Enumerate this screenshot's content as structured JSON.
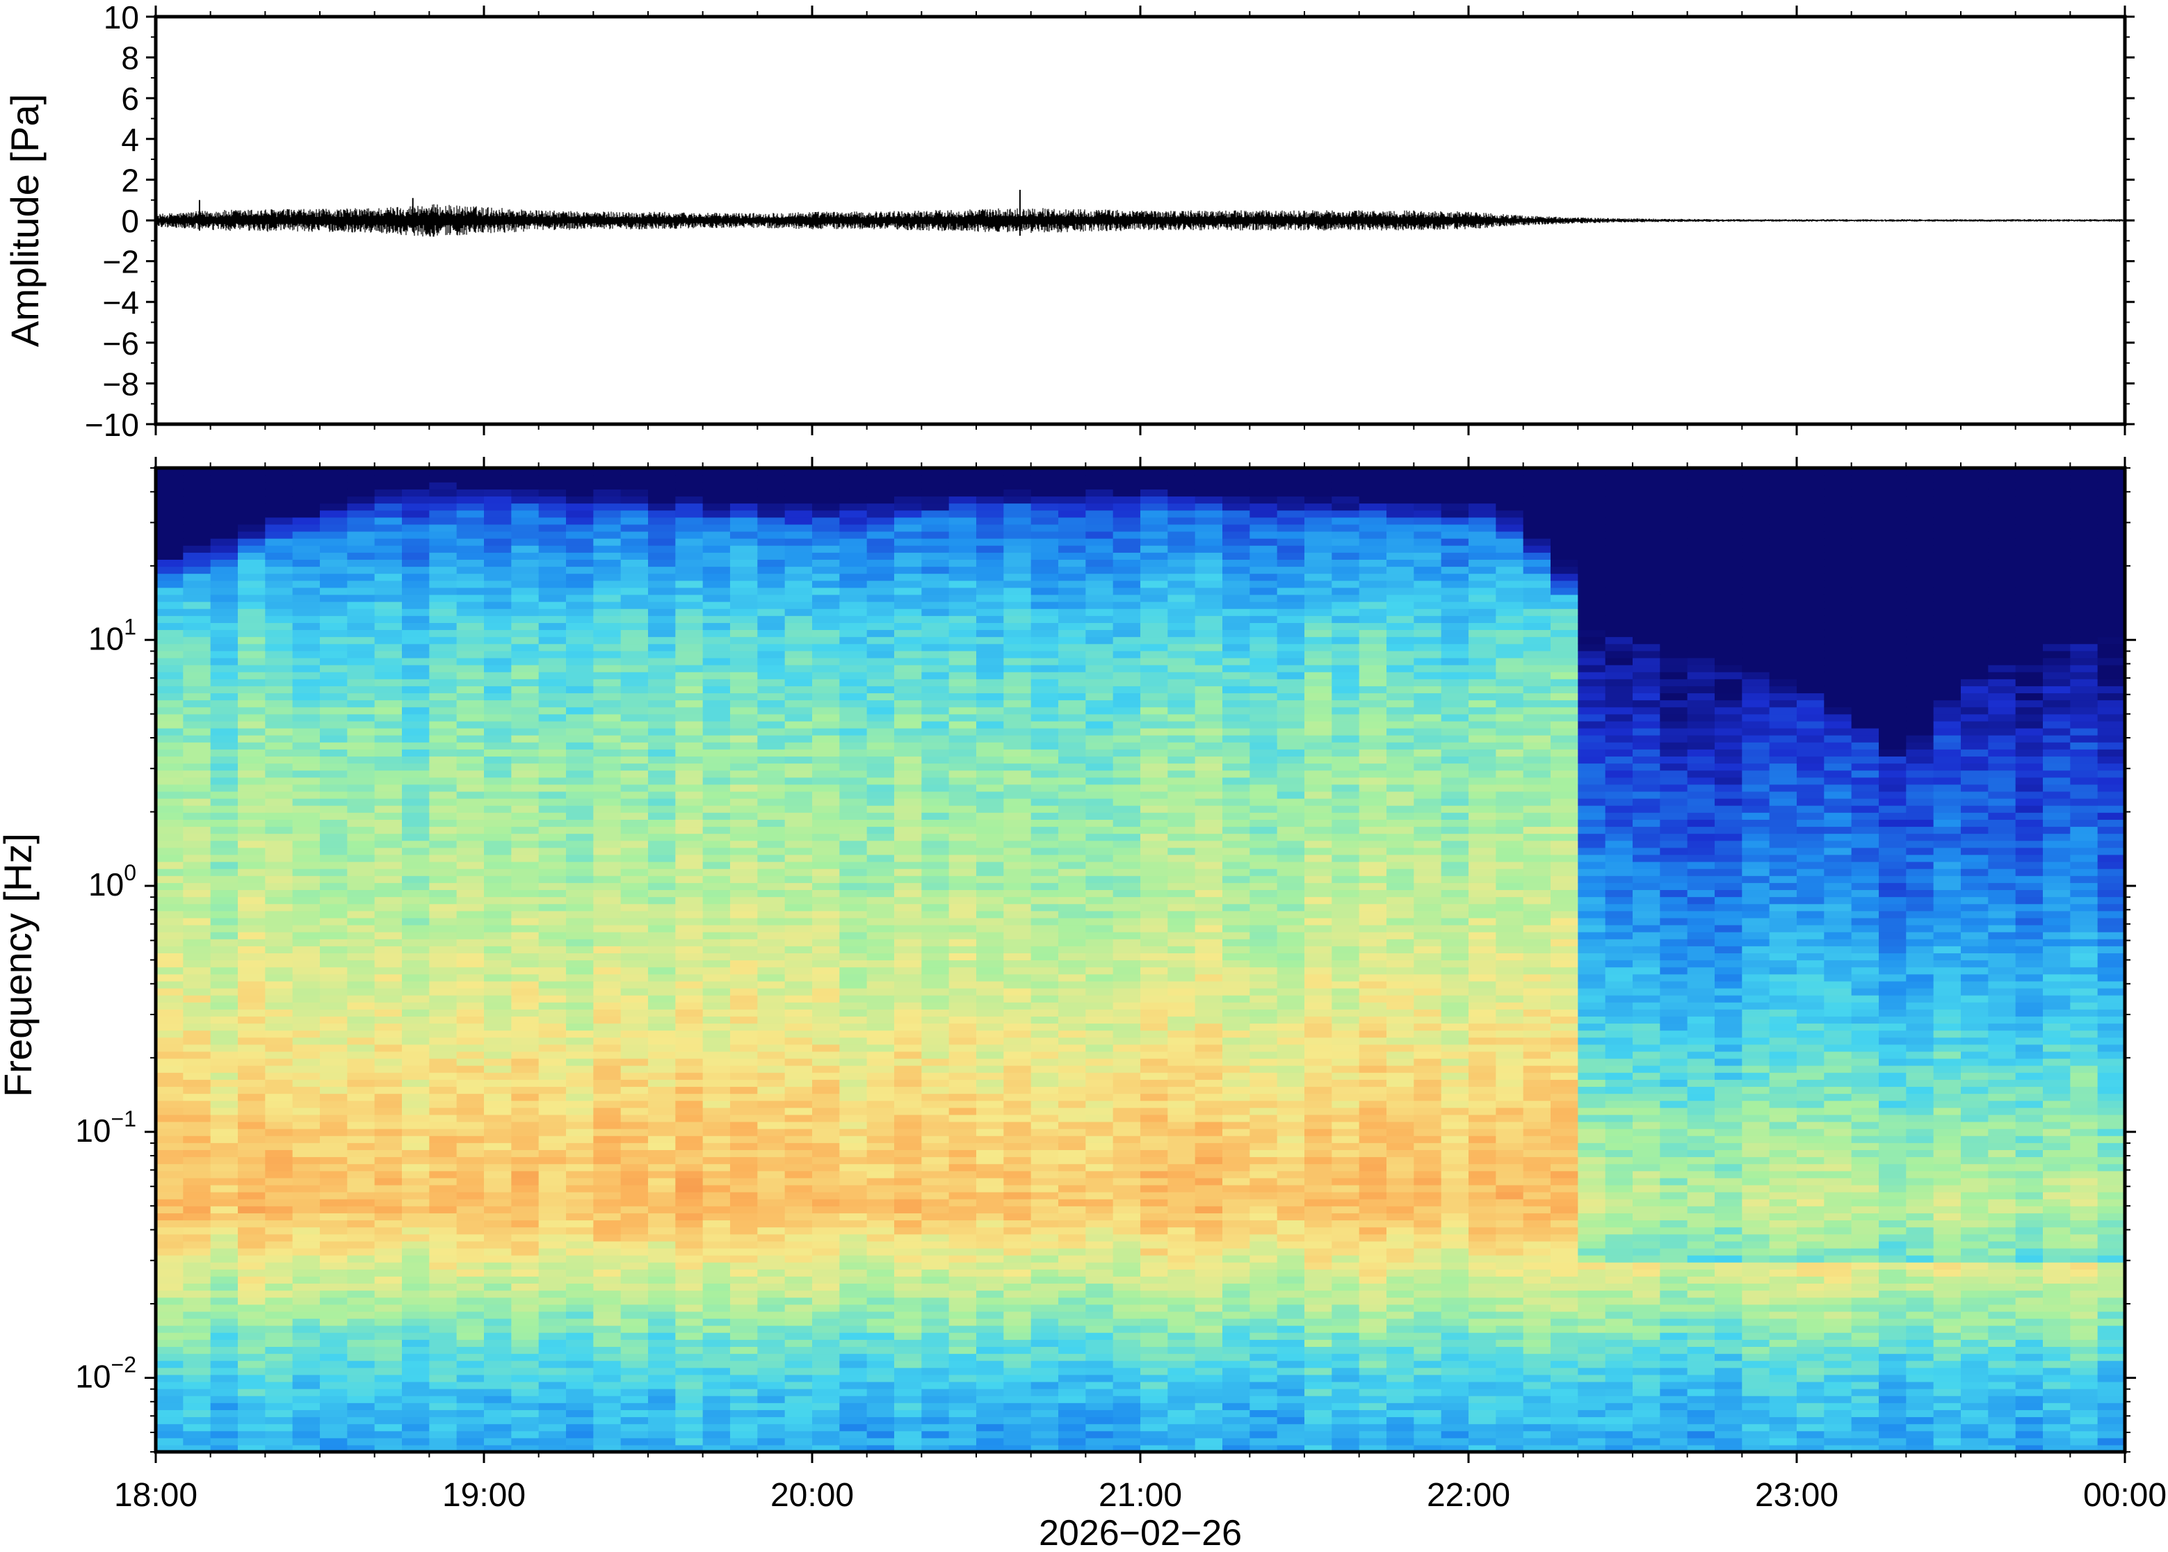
{
  "chart_data": [
    {
      "type": "line",
      "title": "",
      "ylabel": "Amplitude [Pa]",
      "xlabel": "",
      "ylim": [
        -10,
        10
      ],
      "ytick_labels": [
        "10",
        "8",
        "6",
        "4",
        "2",
        "0",
        "−2",
        "−4",
        "−6",
        "−8",
        "−10"
      ],
      "ytick_values": [
        10,
        8,
        6,
        4,
        2,
        0,
        -2,
        -4,
        -6,
        -8,
        -10
      ],
      "grid": false,
      "series": [
        {
          "color": "#000000",
          "x": [
            "18:00",
            "18:10",
            "18:20",
            "18:30",
            "18:40",
            "18:50",
            "19:00",
            "19:10",
            "19:20",
            "19:30",
            "19:40",
            "19:50",
            "20:00",
            "20:10",
            "20:20",
            "20:30",
            "20:40",
            "20:50",
            "21:00",
            "21:10",
            "21:20",
            "21:30",
            "21:40",
            "21:50",
            "22:00",
            "22:10",
            "22:20",
            "22:30",
            "22:40",
            "22:50",
            "23:00",
            "23:10",
            "23:20",
            "23:30",
            "23:40",
            "23:50",
            "00:00"
          ],
          "envelope": [
            0.25,
            0.4,
            0.45,
            0.45,
            0.5,
            0.65,
            0.55,
            0.4,
            0.35,
            0.35,
            0.3,
            0.3,
            0.35,
            0.35,
            0.4,
            0.45,
            0.5,
            0.45,
            0.4,
            0.4,
            0.4,
            0.4,
            0.4,
            0.4,
            0.35,
            0.2,
            0.12,
            0.08,
            0.06,
            0.05,
            0.05,
            0.05,
            0.05,
            0.05,
            0.05,
            0.05,
            0.05
          ],
          "peaks": [
            {
              "x": "18:47",
              "y": 1.1
            },
            {
              "x": "20:38",
              "y": 1.5
            },
            {
              "x": "18:08",
              "y": 1.0
            }
          ]
        }
      ]
    },
    {
      "type": "heatmap",
      "title": "",
      "ylabel": "Frequency [Hz]",
      "xlabel": "2026−02−26",
      "x_tick_labels": [
        "18:00",
        "19:00",
        "20:00",
        "21:00",
        "22:00",
        "23:00",
        "00:00"
      ],
      "y_scale": "log",
      "ylim": [
        0.005,
        50
      ],
      "ytick_labels": [
        {
          "base": "10",
          "exp": "1",
          "value": 10
        },
        {
          "base": "10",
          "exp": "0",
          "value": 1
        },
        {
          "base": "10",
          "exp": "−1",
          "value": 0.1
        },
        {
          "base": "10",
          "exp": "−2",
          "value": 0.01
        }
      ],
      "colormap": "jet",
      "color_stops": [
        "#0a0a6e",
        "#1a2fd0",
        "#1f8fef",
        "#45d4ef",
        "#a7f0a0",
        "#f6e98a",
        "#fbb25a",
        "#f27a3a"
      ],
      "time_columns": 72,
      "upper_cutoff_hz_by_hour": [
        {
          "x": "18:00",
          "f": 15
        },
        {
          "x": "18:45",
          "f": 38
        },
        {
          "x": "20:00",
          "f": 28
        },
        {
          "x": "20:45",
          "f": 36
        },
        {
          "x": "21:45",
          "f": 30
        },
        {
          "x": "22:05",
          "f": 28
        },
        {
          "x": "22:20",
          "f": 12
        },
        {
          "x": "23:00",
          "f": 6
        },
        {
          "x": "23:20",
          "f": 3
        },
        {
          "x": "23:35",
          "f": 8
        },
        {
          "x": "00:00",
          "f": 10
        }
      ],
      "dominant_band_hz": [
        0.03,
        0.12
      ],
      "level_profile_by_freq": [
        {
          "f": 0.006,
          "level": 0.35
        },
        {
          "f": 0.01,
          "level": 0.42
        },
        {
          "f": 0.02,
          "level": 0.58
        },
        {
          "f": 0.05,
          "level": 0.82
        },
        {
          "f": 0.1,
          "level": 0.78
        },
        {
          "f": 0.3,
          "level": 0.68
        },
        {
          "f": 1,
          "level": 0.6
        },
        {
          "f": 3,
          "level": 0.55
        },
        {
          "f": 10,
          "level": 0.45
        },
        {
          "f": 30,
          "level": 0.25
        },
        {
          "f": 50,
          "level": 0.05
        }
      ],
      "quiet_period": {
        "start": "22:20",
        "end": "00:00"
      }
    }
  ]
}
